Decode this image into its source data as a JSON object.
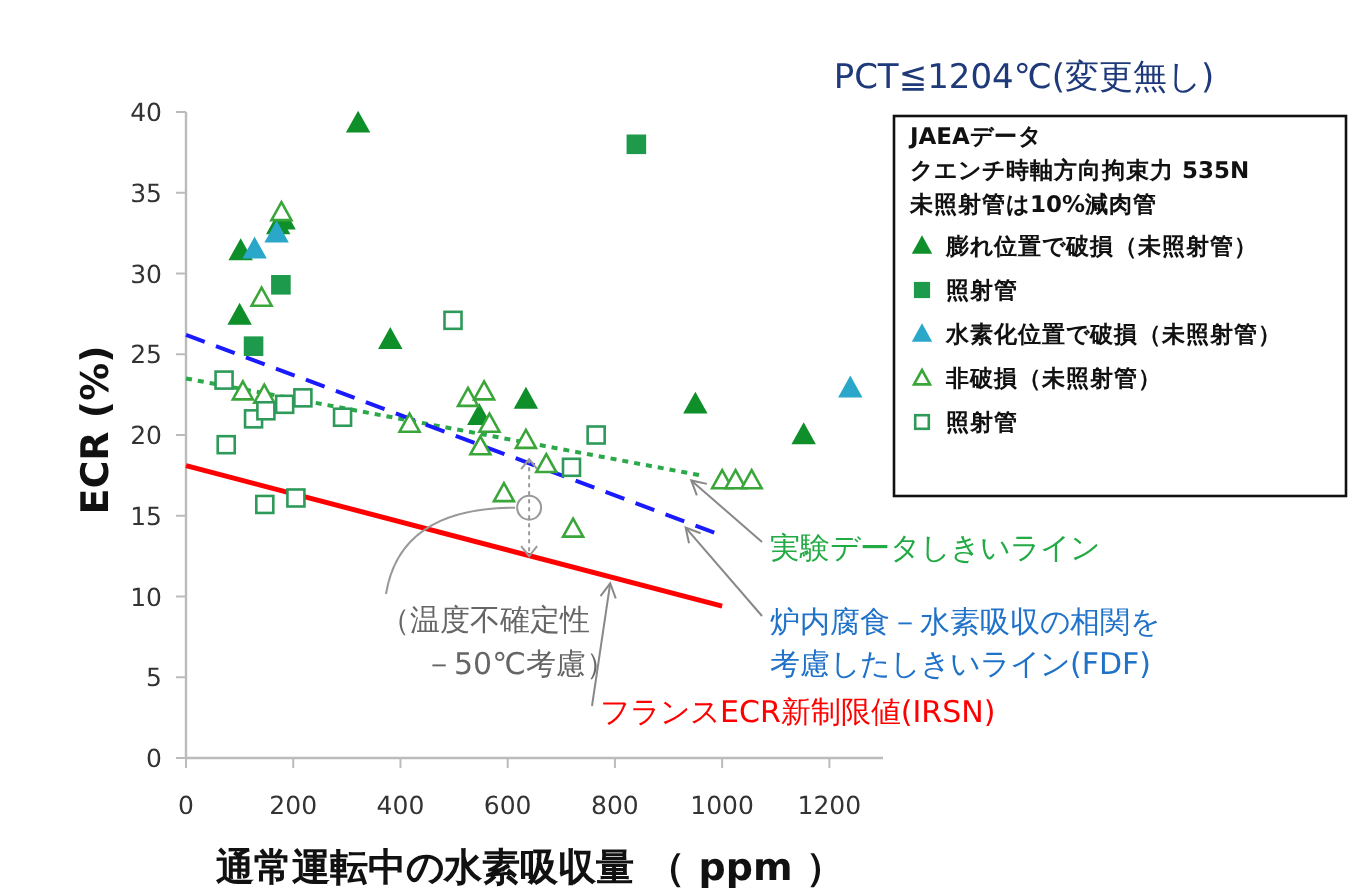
{
  "chart_data": {
    "type": "scatter",
    "title": "PCT≦1204℃(変更無し)",
    "xlabel": "通常運転中の水素吸収量 （ ppm ）",
    "ylabel": "ECR (%)",
    "legend_title": "JAEAデータ",
    "legend": "top right",
    "xlim": [
      0,
      1300
    ],
    "ylim": [
      0,
      40
    ],
    "xticks": [
      0,
      200,
      400,
      600,
      800,
      1000,
      1200
    ],
    "yticks": [
      0,
      5,
      10,
      15,
      20,
      25,
      30,
      35,
      40
    ],
    "grid": false,
    "annotations": [
      {
        "text": "（温度不確定性－50℃考慮）",
        "x": 640,
        "y": 15.5
      },
      "クエンチ時軸方向拘束力 535N",
      "未照射管は10%減肉管"
    ],
    "series": [
      {
        "name": "膨れ位置で破損（未照射管）",
        "type": "scatter",
        "marker": "triangle",
        "color": "#0e8f2a",
        "x": [
          321,
          102,
          172,
          182,
          100,
          381,
          547,
          634,
          950,
          1152
        ],
        "values": [
          39.3,
          31.4,
          33.0,
          33.3,
          27.4,
          25.9,
          21.2,
          22.2,
          21.9,
          20.0
        ]
      },
      {
        "name": "照射管",
        "type": "scatter",
        "marker": "square",
        "color": "#1e9a4c",
        "x": [
          840,
          177,
          126
        ],
        "values": [
          38.0,
          29.3,
          25.5
        ]
      },
      {
        "name": "水素化位置で破損（未照射管）",
        "type": "scatter",
        "marker": "triangle",
        "color": "#2aa7c9",
        "x": [
          128,
          169,
          1239
        ],
        "values": [
          31.5,
          32.5,
          22.9
        ]
      },
      {
        "name": "非破損（未照射管）",
        "type": "scatter",
        "marker": "triangle-open",
        "color": "#3aa63a",
        "x": [
          178,
          141,
          106,
          146,
          417,
          526,
          556,
          566,
          549,
          634,
          672,
          593,
          722,
          1000,
          1025,
          1055
        ],
        "values": [
          33.8,
          28.5,
          22.7,
          22.5,
          20.7,
          22.3,
          22.7,
          20.7,
          19.3,
          19.7,
          18.2,
          16.4,
          14.2,
          17.2,
          17.2,
          17.2
        ]
      },
      {
        "name": "照射管",
        "type": "scatter",
        "marker": "square-open",
        "color": "#2e9a5a",
        "x": [
          71,
          75,
          126,
          149,
          184,
          218,
          292,
          498,
          765,
          719,
          147,
          205
        ],
        "values": [
          23.4,
          19.4,
          21.0,
          21.5,
          21.9,
          22.3,
          21.1,
          27.1,
          20.0,
          18.0,
          15.7,
          16.1
        ]
      },
      {
        "name": "実験データしきいライン",
        "type": "line",
        "line_style": "dotted",
        "color": "#2aa84a",
        "x": [
          0,
          960
        ],
        "values": [
          23.5,
          17.5
        ]
      },
      {
        "name": "炉内腐食－水素吸収の相関を考慮したしきいライン(FDF)",
        "type": "line",
        "line_style": "dashed",
        "color": "#1a1aff",
        "x": [
          0,
          990
        ],
        "values": [
          26.2,
          13.9
        ]
      },
      {
        "name": "フランスECR新制限値(IRSN)",
        "type": "line",
        "line_style": "solid",
        "color": "#ff0000",
        "x": [
          0,
          1000
        ],
        "values": [
          18.1,
          9.4
        ]
      }
    ]
  }
}
